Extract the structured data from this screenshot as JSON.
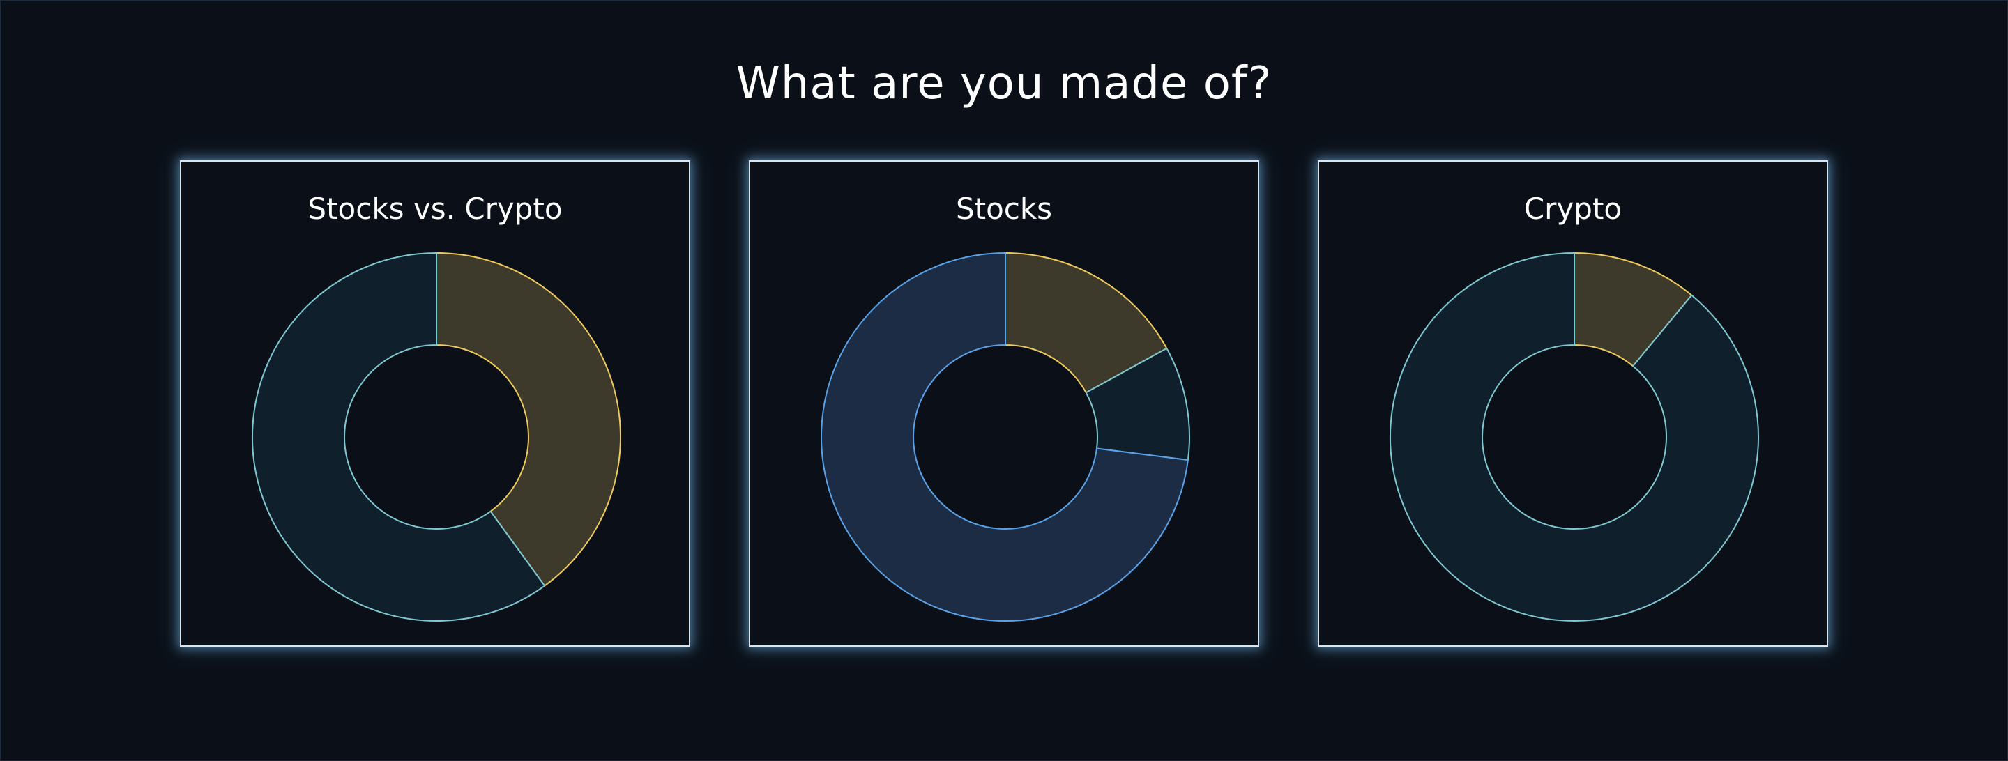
{
  "page": {
    "title": "What are you made of?"
  },
  "charts": [
    {
      "title": "Stocks vs. Crypto"
    },
    {
      "title": "Stocks"
    },
    {
      "title": "Crypto"
    }
  ],
  "chart_data": [
    {
      "type": "pie",
      "title": "Stocks vs. Crypto",
      "slices": [
        {
          "value": 40,
          "fill": "#3d3a2c",
          "stroke": "#f0cb5b"
        },
        {
          "value": 60,
          "fill": "#101f2c",
          "stroke": "#7ec8d2"
        }
      ]
    },
    {
      "type": "pie",
      "title": "Stocks",
      "slices": [
        {
          "value": 17,
          "fill": "#3d3a2c",
          "stroke": "#f0cb5b"
        },
        {
          "value": 10,
          "fill": "#101f2c",
          "stroke": "#7ec8d2"
        },
        {
          "value": 73,
          "fill": "#1b2c44",
          "stroke": "#5aa2e8"
        }
      ]
    },
    {
      "type": "pie",
      "title": "Crypto",
      "slices": [
        {
          "value": 11,
          "fill": "#3d3a2c",
          "stroke": "#f0cb5b"
        },
        {
          "value": 89,
          "fill": "#101f2c",
          "stroke": "#7ec8d2"
        }
      ]
    }
  ]
}
